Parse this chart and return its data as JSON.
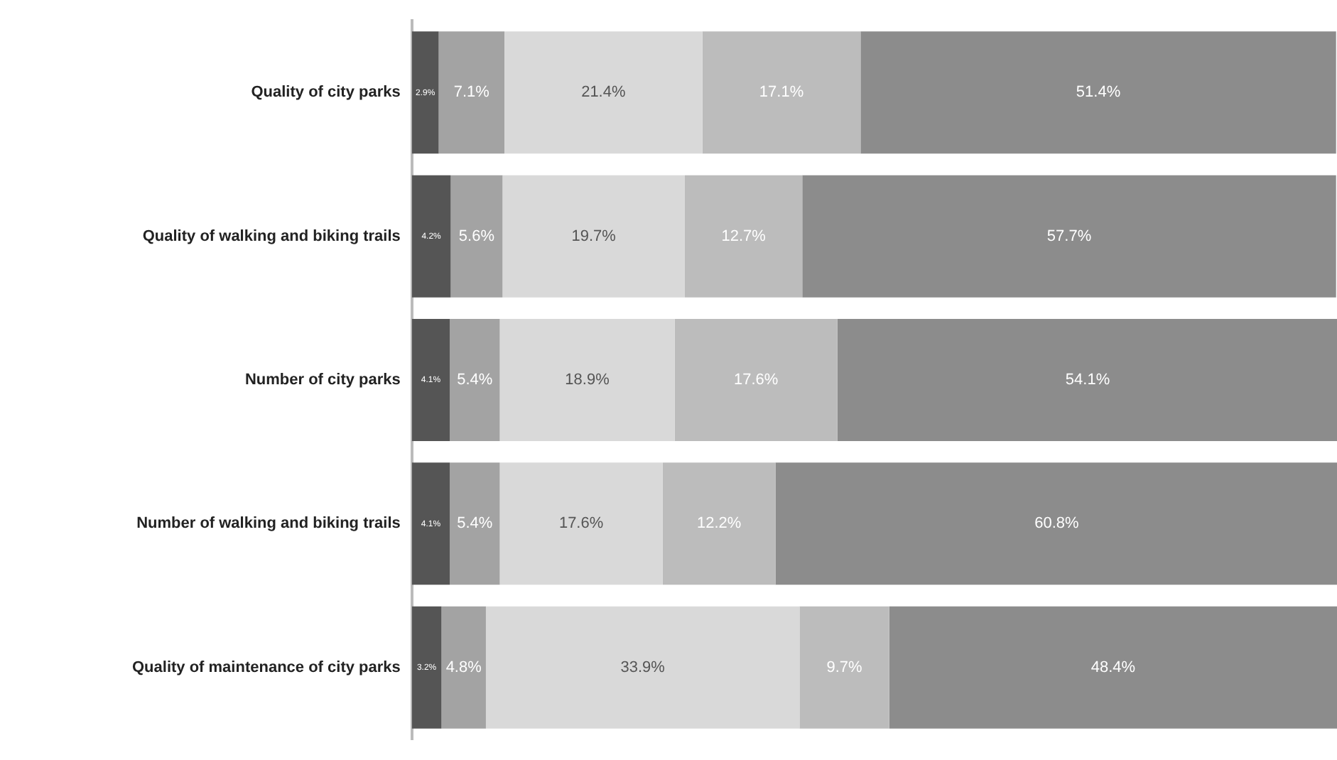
{
  "chart_data": {
    "type": "bar",
    "orientation": "horizontal",
    "stacked": true,
    "legend": false,
    "grid": false,
    "tick_labels": "y",
    "categories": [
      "Quality of city parks",
      "Quality of walking and biking trails",
      "Number of city parks",
      "Number of walking and biking trails",
      "Quality of maintenance of city parks"
    ],
    "xlim": [
      0,
      100
    ],
    "series": [
      {
        "color": "#555555",
        "values": [
          2.9,
          4.2,
          4.1,
          4.1,
          3.2
        ],
        "value_labels": [
          "2.9%",
          "4.2%",
          "4.1%",
          "4.1%",
          "3.2%"
        ]
      },
      {
        "color": "#a3a3a3",
        "values": [
          7.1,
          5.6,
          5.4,
          5.4,
          4.8
        ],
        "value_labels": [
          "7.1%",
          "5.6%",
          "5.4%",
          "5.4%",
          "4.8%"
        ]
      },
      {
        "color": "#d9d9d9",
        "values": [
          21.4,
          19.7,
          18.9,
          17.6,
          33.9
        ],
        "value_labels": [
          "21.4%",
          "19.7%",
          "18.9%",
          "17.6%",
          "33.9%"
        ]
      },
      {
        "color": "#bcbcbc",
        "values": [
          17.1,
          12.7,
          17.6,
          12.2,
          9.7
        ],
        "value_labels": [
          "17.1%",
          "12.7%",
          "17.6%",
          "12.2%",
          "9.7%"
        ]
      },
      {
        "color": "#8c8c8c",
        "values": [
          51.4,
          57.7,
          54.1,
          60.8,
          48.4
        ],
        "value_labels": [
          "51.4%",
          "57.7%",
          "54.1%",
          "60.8%",
          "48.4%"
        ]
      }
    ]
  }
}
